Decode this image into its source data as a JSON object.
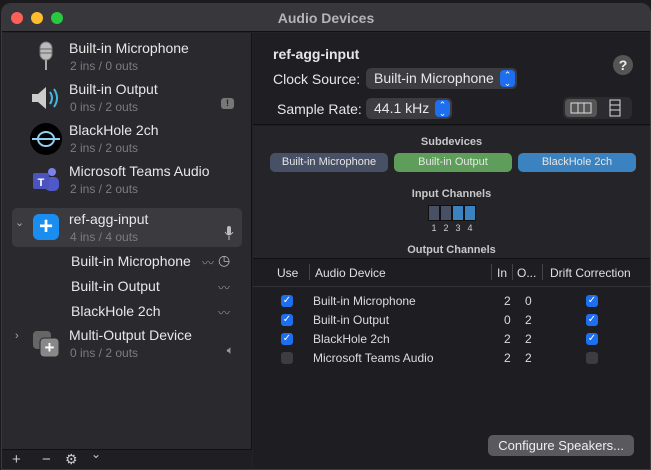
{
  "window": {
    "title": "Audio Devices"
  },
  "sidebar": {
    "devices": [
      {
        "name": "Built-in Microphone",
        "io": "2 ins / 0 outs",
        "icon": "microphone-icon"
      },
      {
        "name": "Built-in Output",
        "io": "0 ins / 2 outs",
        "icon": "speaker-icon",
        "badge": "!"
      },
      {
        "name": "BlackHole 2ch",
        "io": "2 ins / 2 outs",
        "icon": "blackhole-icon"
      },
      {
        "name": "Microsoft Teams Audio",
        "io": "2 ins / 2 outs",
        "icon": "teams-icon",
        "icon_letter": "T"
      },
      {
        "name": "ref-agg-input",
        "io": "4 ins / 4 outs",
        "icon": "aggregate-device-icon",
        "selected": true,
        "expanded": true
      },
      {
        "name": "Multi-Output Device",
        "io": "0 ins / 2 outs",
        "icon": "multi-output-icon"
      }
    ],
    "subdevices": [
      "Built-in Microphone",
      "Built-in Output",
      "BlackHole 2ch"
    ],
    "toolbar": {
      "add": "+",
      "remove": "−",
      "gear": "⚙",
      "menu": "⌄"
    }
  },
  "main": {
    "device_name": "ref-agg-input",
    "clock_source_label": "Clock Source:",
    "clock_source": "Built-in Microphone",
    "sample_rate_label": "Sample Rate:",
    "sample_rate": "44.1 kHz",
    "help": "?",
    "subdevices_title": "Subdevices",
    "subdevice_pills": [
      {
        "label": "Built-in Microphone",
        "color": "#485066"
      },
      {
        "label": "Built-in Output",
        "color": "#5e9e5a"
      },
      {
        "label": "BlackHole 2ch",
        "color": "#3a83c0"
      }
    ],
    "input_channels_title": "Input Channels",
    "input_channels": [
      {
        "n": "1",
        "color": "#485066"
      },
      {
        "n": "2",
        "color": "#485066"
      },
      {
        "n": "3",
        "color": "#3a83c0"
      },
      {
        "n": "4",
        "color": "#3a83c0"
      }
    ],
    "output_channels_title": "Output Channels",
    "table": {
      "headers": {
        "use": "Use",
        "device": "Audio Device",
        "in": "In",
        "out": "O...",
        "drift": "Drift Correction"
      },
      "rows": [
        {
          "use": true,
          "device": "Built-in Microphone",
          "in": "2",
          "out": "0",
          "drift": true
        },
        {
          "use": true,
          "device": "Built-in Output",
          "in": "0",
          "out": "2",
          "drift": true
        },
        {
          "use": true,
          "device": "BlackHole 2ch",
          "in": "2",
          "out": "2",
          "drift": true
        },
        {
          "use": false,
          "device": "Microsoft Teams Audio",
          "in": "2",
          "out": "2",
          "drift": false
        }
      ]
    },
    "configure_button": "Configure Speakers..."
  }
}
